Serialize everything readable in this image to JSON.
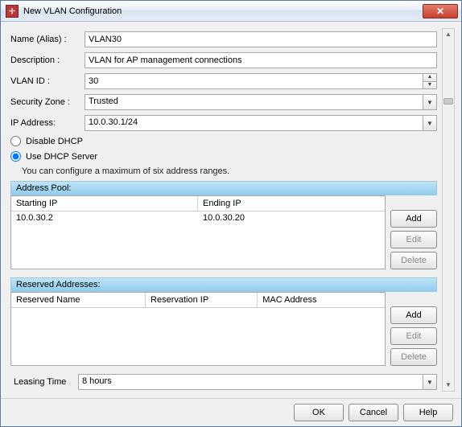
{
  "window": {
    "title": "New VLAN Configuration"
  },
  "form": {
    "name_label": "Name (Alias) :",
    "name_value": "VLAN30",
    "description_label": "Description :",
    "description_value": "VLAN for AP management connections",
    "vlan_id_label": "VLAN ID :",
    "vlan_id_value": "30",
    "security_zone_label": "Security Zone :",
    "security_zone_value": "Trusted",
    "ip_address_label": "IP Address:",
    "ip_address_value": "10.0.30.1/24"
  },
  "dhcp": {
    "disable_label": "Disable DHCP",
    "use_server_label": "Use DHCP Server",
    "selected": "use_server",
    "hint": "You can configure a maximum of six address ranges."
  },
  "address_pool": {
    "header": "Address Pool:",
    "columns": {
      "starting": "Starting IP",
      "ending": "Ending IP"
    },
    "col_widths": {
      "starting_pct": 50,
      "ending_pct": 50
    },
    "rows": [
      {
        "starting": "10.0.30.2",
        "ending": "10.0.30.20"
      }
    ],
    "buttons": {
      "add": "Add",
      "edit": "Edit",
      "delete": "Delete"
    }
  },
  "reserved": {
    "header": "Reserved Addresses:",
    "columns": {
      "name": "Reserved Name",
      "ip": "Reservation IP",
      "mac": "MAC Address"
    },
    "col_widths": {
      "name_pct": 36,
      "ip_pct": 30,
      "mac_pct": 34
    },
    "rows": [],
    "buttons": {
      "add": "Add",
      "edit": "Edit",
      "delete": "Delete"
    }
  },
  "leasing": {
    "label": "Leasing Time",
    "value": "8 hours"
  },
  "footer": {
    "ok": "OK",
    "cancel": "Cancel",
    "help": "Help"
  },
  "colors": {
    "section_head_top": "#bfe4f7",
    "section_head_bottom": "#8fcdee",
    "border": "#a8a8a8",
    "dialog_border": "#5a7ba8",
    "close_top": "#e67a6c",
    "close_bottom": "#c8402e",
    "bg": "#f0f0f0"
  }
}
